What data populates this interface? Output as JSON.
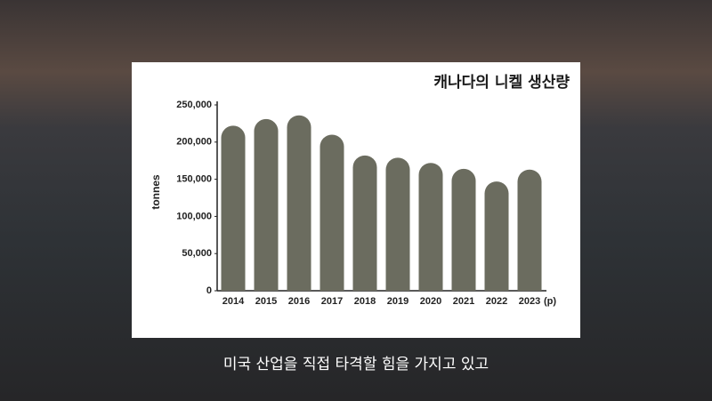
{
  "caption": "미국 산업을 직접 타격할 힘을 가지고 있고",
  "chart_data": {
    "type": "bar",
    "title": "캐나다의 니켈 생산량",
    "ylabel": "tonnes",
    "categories": [
      "2014",
      "2015",
      "2016",
      "2017",
      "2018",
      "2019",
      "2020",
      "2021",
      "2022",
      "2023"
    ],
    "annotation": "(p)",
    "values": [
      222000,
      231000,
      236000,
      210000,
      182000,
      179000,
      172000,
      164000,
      147000,
      163000
    ],
    "color": "#6b6c5f",
    "ylim": [
      0,
      250000
    ],
    "yticks": [
      0,
      {
        "value": 50000,
        "label": "50,000"
      },
      {
        "value": 100000,
        "label": "100,000"
      },
      {
        "value": 150000,
        "label": "150,000"
      },
      {
        "value": 200000,
        "label": "200,000"
      },
      {
        "value": 250000,
        "label": "250,000"
      }
    ],
    "grid": false
  }
}
